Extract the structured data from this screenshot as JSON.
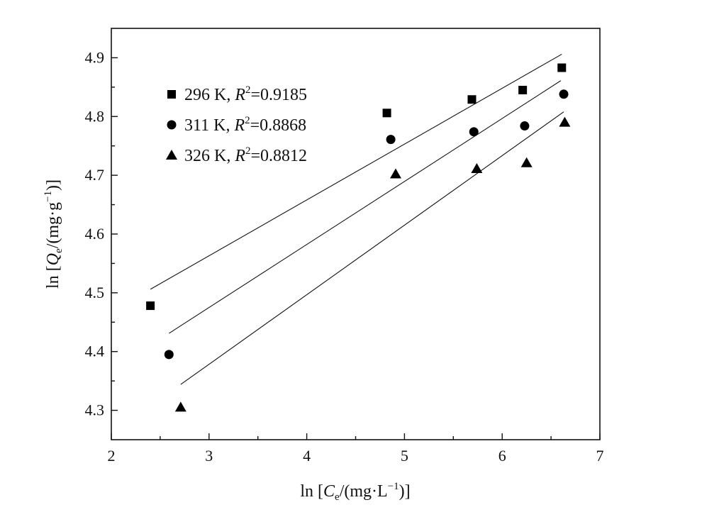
{
  "chart_data": {
    "type": "scatter",
    "xlabel_parts": [
      "ln [",
      "C",
      "e",
      "/(mg·L",
      "−1",
      ")]"
    ],
    "ylabel_parts": [
      "ln [",
      "Q",
      "e",
      "/(mg·g",
      "−1",
      ")]"
    ],
    "xlim": [
      2,
      7
    ],
    "ylim": [
      4.25,
      4.95
    ],
    "x_ticks": [
      2,
      3,
      4,
      5,
      6,
      7
    ],
    "x_tick_labels": [
      "2",
      "3",
      "4",
      "5",
      "6",
      "7"
    ],
    "y_ticks": [
      4.3,
      4.4,
      4.5,
      4.6,
      4.7,
      4.8,
      4.9
    ],
    "y_tick_labels": [
      "4.3",
      "4.4",
      "4.5",
      "4.6",
      "4.7",
      "4.8",
      "4.9"
    ],
    "legend_position": "top-left",
    "grid": false,
    "series": [
      {
        "name": "296 K",
        "r2_label": "R",
        "r2_sup": "2",
        "r2_value": "=0.9185",
        "marker": "square",
        "x": [
          2.4,
          4.82,
          5.69,
          6.21,
          6.61
        ],
        "y": [
          4.478,
          4.806,
          4.829,
          4.845,
          4.883
        ],
        "fit": {
          "x": [
            2.4,
            6.61
          ],
          "y": [
            4.506,
            4.906
          ]
        }
      },
      {
        "name": "311 K",
        "r2_label": "R",
        "r2_sup": "2",
        "r2_value": "=0.8868",
        "marker": "circle",
        "x": [
          2.59,
          4.86,
          5.71,
          6.23,
          6.63
        ],
        "y": [
          4.395,
          4.761,
          4.774,
          4.784,
          4.838
        ],
        "fit": {
          "x": [
            2.59,
            6.6
          ],
          "y": [
            4.431,
            4.861
          ]
        }
      },
      {
        "name": "326 K",
        "r2_label": "R",
        "r2_sup": "2",
        "r2_value": "=0.8812",
        "marker": "triangle",
        "x": [
          2.71,
          4.91,
          5.74,
          6.25,
          6.64
        ],
        "y": [
          4.305,
          4.702,
          4.711,
          4.721,
          4.79
        ],
        "fit": {
          "x": [
            2.71,
            6.63
          ],
          "y": [
            4.344,
            4.808
          ]
        }
      }
    ]
  }
}
